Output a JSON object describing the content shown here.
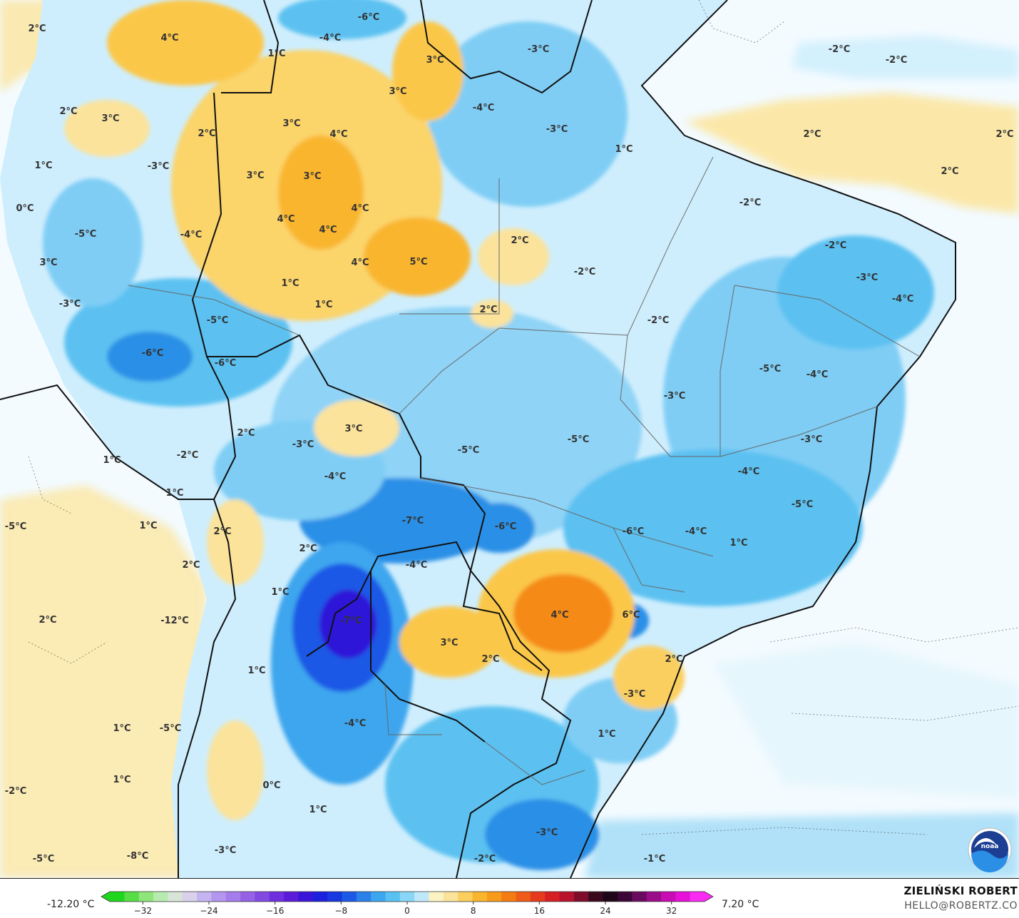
{
  "colors": {
    "ocean": "#f3fbff",
    "land": "#cfeefd",
    "warm_light": "#fbe7a8",
    "warm_mid": "#fbc74a",
    "warm_strong": "#f8a21c",
    "warm_hot": "#f27b12",
    "cold_light": "#a8def7",
    "cold_mid": "#5cc1f1",
    "cold_strong": "#2b8fe6",
    "cold_deep": "#1a4fe0",
    "cold_max": "#2d12d8",
    "border": "#111111"
  },
  "icons": {
    "logo": "noaa-logo-icon"
  },
  "map": {
    "labels": [
      "2°C",
      "4°C",
      "-6°C",
      "-4°C",
      "1°C",
      "3°C",
      "-3°C",
      "-2°C",
      "-2°C",
      "-4°C",
      "-3°C",
      "3°C",
      "1°C",
      "2°C",
      "2°C",
      "2°C",
      "2°C",
      "1°C",
      "3°C",
      "3°C",
      "4°C",
      "2°C",
      "-3°C",
      "0°C",
      "3°C",
      "3°C",
      "4°C",
      "-5°C",
      "-4°C",
      "4°C",
      "4°C",
      "-2°C",
      "3°C",
      "4°C",
      "5°C",
      "2°C",
      "-2°C",
      "-2°C",
      "1°C",
      "1°C",
      "2°C",
      "-3°C",
      "-4°C",
      "-3°C",
      "-5°C",
      "-2°C",
      "-6°C",
      "-6°C",
      "-5°C",
      "-4°C",
      "-3°C",
      "2°C",
      "3°C",
      "-3°C",
      "-5°C",
      "-5°C",
      "-3°C",
      "1°C",
      "-2°C",
      "-4°C",
      "-4°C",
      "1°C",
      "1°C",
      "-7°C",
      "-6°C",
      "-5°C",
      "-5°C",
      "-6°C",
      "-4°C",
      "1°C",
      "2°C",
      "2°C",
      "-4°C",
      "2°C",
      "1°C",
      "2°C",
      "-12°C",
      "-7°C",
      "6°C",
      "4°C",
      "3°C",
      "2°C",
      "2°C",
      "-3°C",
      "1°C",
      "1°C",
      "-5°C",
      "-4°C",
      "1°C",
      "-2°C",
      "0°C",
      "1°C",
      "1°C",
      "-8°C",
      "-5°C",
      "-3°C",
      "-3°C",
      "-2°C",
      "-1°C"
    ]
  },
  "colorbar": {
    "min_label": "-12.20 °C",
    "max_label": "7.20 °C",
    "ticks": [
      "−32",
      "−24",
      "−16",
      "−8",
      "0",
      "8",
      "16",
      "24",
      "32"
    ],
    "tick_values": [
      -32,
      -24,
      -16,
      -8,
      0,
      8,
      16,
      24,
      32
    ],
    "range": [
      -36,
      36
    ],
    "colors": [
      "#1fd61f",
      "#57dd45",
      "#8fe57a",
      "#b8ebb0",
      "#d7e4d7",
      "#d9d1ec",
      "#c5b4ef",
      "#b495f0",
      "#a57ceb",
      "#9562e6",
      "#8248e2",
      "#6f2fde",
      "#5a1cd9",
      "#3b14d9",
      "#1c20dc",
      "#1737e0",
      "#1c58e6",
      "#2b80ea",
      "#3ca6ee",
      "#59c1f2",
      "#89d6f6",
      "#bfe9fa",
      "#fbf3c2",
      "#fbe39b",
      "#fbcf5e",
      "#f9b52e",
      "#f89a1a",
      "#f47c15",
      "#ef5b18",
      "#e63a1d",
      "#d61f24",
      "#b8122d",
      "#7e0c2a",
      "#3a0a1c",
      "#1e0518",
      "#3b0538",
      "#6a0a5e",
      "#9a0c88",
      "#c70cb2",
      "#e610d8",
      "#f92cf2"
    ]
  },
  "author": {
    "name": "ZIELIŃSKI ROBERT",
    "email": "HELLO@ROBERTZ.CO"
  }
}
